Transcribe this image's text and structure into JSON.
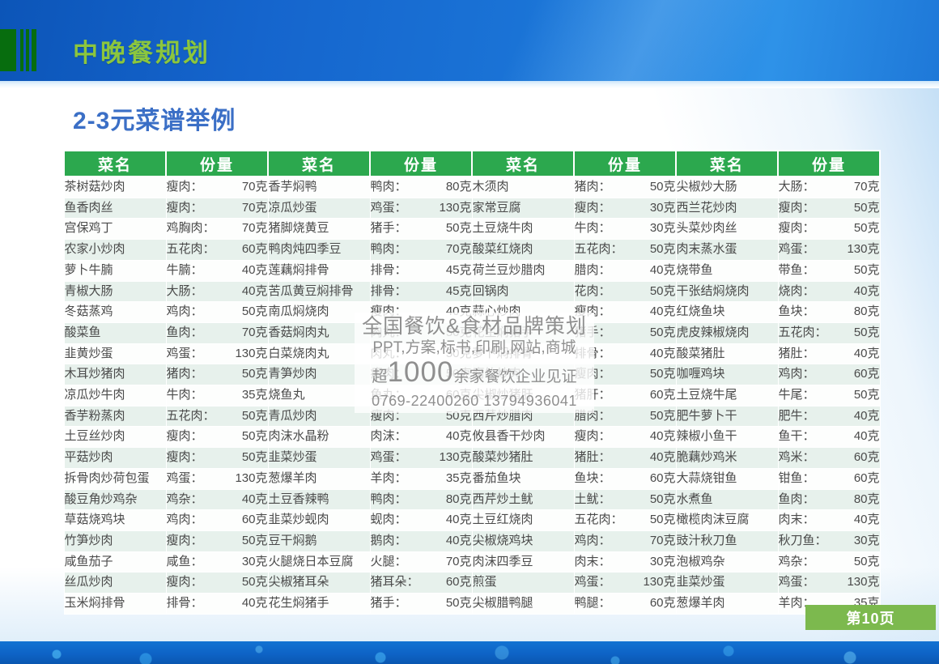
{
  "slide": {
    "header_title": "中晚餐规划",
    "subtitle": "2-3元菜谱举例",
    "page_badge": "第10页"
  },
  "colors": {
    "header_band_blue": "#1a73d6",
    "title_green": "#8cc63e",
    "subtitle_blue": "#3b6fc6",
    "table_header_green": "#2ca84e",
    "row_alt_green": "#e7f1ec",
    "badge_green": "#7cb94e",
    "bottom_band_blue": "#0e63c6"
  },
  "watermark": {
    "line1": "全国餐饮&食材品牌策划",
    "line2": "PPT,方案,标书,印刷,网站,商城",
    "line3_prefix": "超",
    "line3_big": "1000",
    "line3_suffix": "余家餐饮企业见证",
    "line4": "0769-22400260  13794936041"
  },
  "table": {
    "col_headers": [
      "菜名",
      "份量"
    ],
    "groups": [
      {
        "rows": [
          [
            "茶树菇炒肉",
            "瘦肉：",
            "70克"
          ],
          [
            "鱼香肉丝",
            "瘦肉：",
            "70克"
          ],
          [
            "宫保鸡丁",
            "鸡胸肉：",
            "70克"
          ],
          [
            "农家小炒肉",
            "五花肉：",
            "60克"
          ],
          [
            "萝卜牛腩",
            "牛腩：",
            "40克"
          ],
          [
            "青椒大肠",
            "大肠：",
            "40克"
          ],
          [
            "冬菇蒸鸡",
            "鸡肉：",
            "50克"
          ],
          [
            "酸菜鱼",
            "鱼肉：",
            "70克"
          ],
          [
            "韭黄炒蛋",
            "鸡蛋：",
            "130克"
          ],
          [
            "木耳炒猪肉",
            "猪肉：",
            "50克"
          ],
          [
            "凉瓜炒牛肉",
            "牛肉：",
            "35克"
          ],
          [
            "香芋粉蒸肉",
            "五花肉：",
            "50克"
          ],
          [
            "土豆丝炒肉",
            "瘦肉：",
            "50克"
          ],
          [
            "平菇炒肉",
            "瘦肉：",
            "50克"
          ],
          [
            "拆骨肉炒荷包蛋",
            "鸡蛋：",
            "130克"
          ],
          [
            "酸豆角炒鸡杂",
            "鸡杂：",
            "40克"
          ],
          [
            "草菇烧鸡块",
            "鸡肉：",
            "60克"
          ],
          [
            "竹笋炒肉",
            "瘦肉：",
            "50克"
          ],
          [
            "咸鱼茄子",
            "咸鱼：",
            "30克"
          ],
          [
            "丝瓜炒肉",
            "瘦肉：",
            "50克"
          ],
          [
            "玉米焖排骨",
            "排骨：",
            "40克"
          ]
        ]
      },
      {
        "rows": [
          [
            "香芋焖鸭",
            "鸭肉：",
            "80克"
          ],
          [
            "凉瓜炒蛋",
            "鸡蛋：",
            "130克"
          ],
          [
            "猪脚烧黄豆",
            "猪手：",
            "50克"
          ],
          [
            "鸭肉炖四季豆",
            "鸭肉：",
            "70克"
          ],
          [
            "莲藕焖排骨",
            "排骨：",
            "45克"
          ],
          [
            "苦瓜黄豆焖排骨",
            "排骨：",
            "45克"
          ],
          [
            "南瓜焖烧肉",
            "瘦肉：",
            "40克"
          ],
          [
            "香菇焖肉丸",
            "肉丸：",
            "50克"
          ],
          [
            "白菜烧肉丸",
            "肉丸：",
            "50克"
          ],
          [
            "青笋炒肉",
            "瘦肉：",
            "50克"
          ],
          [
            "烧鱼丸",
            "鱼丸：",
            "60克"
          ],
          [
            "青瓜炒肉",
            "瘦肉：",
            "50克"
          ],
          [
            "肉沫水晶粉",
            "肉沫：",
            "40克"
          ],
          [
            "韭菜炒蛋",
            "鸡蛋：",
            "130克"
          ],
          [
            "葱爆羊肉",
            "羊肉：",
            "35克"
          ],
          [
            "土豆香辣鸭",
            "鸭肉：",
            "80克"
          ],
          [
            "韭菜炒蚬肉",
            "蚬肉：",
            "40克"
          ],
          [
            "豆干焖鹅",
            "鹅肉：",
            "40克"
          ],
          [
            "火腿烧日本豆腐",
            "火腿：",
            "70克"
          ],
          [
            "尖椒猪耳朵",
            "猪耳朵：",
            "60克"
          ],
          [
            "花生焖猪手",
            "猪手：",
            "50克"
          ]
        ]
      },
      {
        "rows": [
          [
            "木须肉",
            "猪肉：",
            "50克"
          ],
          [
            "家常豆腐",
            "瘦肉：",
            "30克"
          ],
          [
            "土豆烧牛肉",
            "牛肉：",
            "30克"
          ],
          [
            "酸菜红烧肉",
            "五花肉：",
            "50克"
          ],
          [
            "荷兰豆炒腊肉",
            "腊肉：",
            "40克"
          ],
          [
            "回锅肉",
            "花肉：",
            "50克"
          ],
          [
            "蒜心炒肉",
            "瘦肉：",
            "40克"
          ],
          [
            "花生焖猪手",
            "猪手：",
            "50克"
          ],
          [
            "萝卜焖排骨",
            "排骨：",
            "40克"
          ],
          [
            "腐竹炒肉",
            "瘦肉：",
            "50克"
          ],
          [
            "尖椒炒猪肝",
            "猪肝：",
            "60克"
          ],
          [
            "西芹炒腊肉",
            "腊肉：",
            "50克"
          ],
          [
            "攸县香干炒肉",
            "瘦肉：",
            "40克"
          ],
          [
            "酸菜炒猪肚",
            "猪肚：",
            "40克"
          ],
          [
            "番茄鱼块",
            "鱼块：",
            "60克"
          ],
          [
            "西芹炒土鱿",
            "土鱿：",
            "50克"
          ],
          [
            "土豆红烧肉",
            "五花肉：",
            "50克"
          ],
          [
            "尖椒烧鸡块",
            "鸡肉：",
            "70克"
          ],
          [
            "肉沫四季豆",
            "肉末：",
            "30克"
          ],
          [
            "煎蛋",
            "鸡蛋：",
            "130克"
          ],
          [
            "尖椒腊鸭腿",
            "鸭腿：",
            "60克"
          ]
        ]
      },
      {
        "rows": [
          [
            "尖椒炒大肠",
            "大肠：",
            "70克"
          ],
          [
            "西兰花炒肉",
            "瘦肉：",
            "50克"
          ],
          [
            "头菜炒肉丝",
            "瘦肉：",
            "50克"
          ],
          [
            "肉末蒸水蛋",
            "鸡蛋：",
            "130克"
          ],
          [
            "烧带鱼",
            "带鱼：",
            "50克"
          ],
          [
            "干张结焖烧肉",
            "烧肉：",
            "40克"
          ],
          [
            "红烧鱼块",
            "鱼块：",
            "80克"
          ],
          [
            "虎皮辣椒烧肉",
            "五花肉：",
            "50克"
          ],
          [
            "酸菜猪肚",
            "猪肚：",
            "40克"
          ],
          [
            "咖喱鸡块",
            "鸡肉：",
            "60克"
          ],
          [
            "土豆烧牛尾",
            "牛尾：",
            "50克"
          ],
          [
            "肥牛萝卜干",
            "肥牛：",
            "40克"
          ],
          [
            "辣椒小鱼干",
            "鱼干：",
            "40克"
          ],
          [
            "脆藕炒鸡米",
            "鸡米：",
            "60克"
          ],
          [
            "大蒜烧钳鱼",
            "钳鱼：",
            "60克"
          ],
          [
            "水煮鱼",
            "鱼肉：",
            "80克"
          ],
          [
            "橄榄肉沫豆腐",
            "肉末：",
            "40克"
          ],
          [
            "豉汁秋刀鱼",
            "秋刀鱼：",
            "30克"
          ],
          [
            "泡椒鸡杂",
            "鸡杂：",
            "50克"
          ],
          [
            "韭菜炒蛋",
            "鸡蛋：",
            "130克"
          ],
          [
            "葱爆羊肉",
            "羊肉：",
            "35克"
          ]
        ]
      }
    ]
  }
}
